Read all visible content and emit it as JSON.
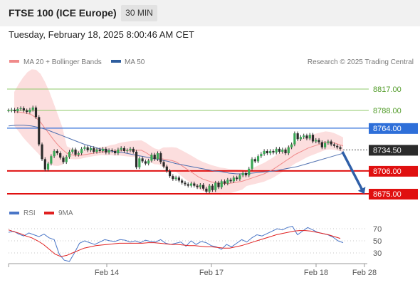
{
  "header": {
    "title": "FTSE 100 (ICE Europe)",
    "timeframe": "30 MIN"
  },
  "timestamp": "Tuesday, February 18, 2025 8:00:46 AM CET",
  "legend": [
    {
      "label": "MA 20 + Bollinger Bands",
      "color": "#f08a8a"
    },
    {
      "label": "MA 50",
      "color": "#2e5d9e"
    }
  ],
  "credit": "Research © 2025 Trading Central",
  "rsi_legend": [
    {
      "label": "RSI",
      "color": "#4a76c7"
    },
    {
      "label": "9MA",
      "color": "#e02020"
    }
  ],
  "chart_data": {
    "type": "line",
    "title": "FTSE 100 (ICE Europe)",
    "interval": "30 MIN",
    "x_ticks": [
      "Feb 14",
      "Feb 17",
      "Feb 18",
      "Feb 28"
    ],
    "last_price": 8734.5,
    "last_price_label": "8734.50",
    "levels": [
      {
        "value": 8817.0,
        "label": "8817.00",
        "color": "#8fc96a",
        "kind": "target"
      },
      {
        "value": 8788.0,
        "label": "8788.00",
        "color": "#8fc96a",
        "kind": "target"
      },
      {
        "value": 8764.0,
        "label": "8764.00",
        "color": "#2e6fd9",
        "kind": "pivot"
      },
      {
        "value": 8706.0,
        "label": "8706.00",
        "color": "#e01010",
        "kind": "support"
      },
      {
        "value": 8675.0,
        "label": "8675.00",
        "color": "#e01010",
        "kind": "support"
      }
    ],
    "price_series": [
      8788,
      8789,
      8787,
      8790,
      8791,
      8788,
      8786,
      8789,
      8792,
      8779,
      8742,
      8722,
      8708,
      8716,
      8726,
      8733,
      8730,
      8724,
      8718,
      8725,
      8732,
      8735,
      8728,
      8730,
      8736,
      8738,
      8734,
      8737,
      8732,
      8735,
      8733,
      8736,
      8731,
      8734,
      8733,
      8730,
      8735,
      8737,
      8733,
      8734,
      8736,
      8732,
      8711,
      8723,
      8719,
      8716,
      8720,
      8728,
      8722,
      8730,
      8718,
      8712,
      8706,
      8699,
      8695,
      8697,
      8693,
      8690,
      8688,
      8686,
      8689,
      8686,
      8684,
      8687,
      8682,
      8678,
      8686,
      8680,
      8690,
      8684,
      8692,
      8689,
      8694,
      8692,
      8697,
      8695,
      8700,
      8703,
      8700,
      8709,
      8722,
      8719,
      8726,
      8729,
      8733,
      8730,
      8733,
      8731,
      8736,
      8732,
      8735,
      8730,
      8738,
      8742,
      8757,
      8749,
      8752,
      8754,
      8750,
      8755,
      8746,
      8748,
      8745,
      8738,
      8744,
      8746,
      8742,
      8740,
      8738,
      8736
    ],
    "ma20_series": [
      8786,
      8786,
      8785,
      8784,
      8782,
      8778,
      8772,
      8764,
      8756,
      8748,
      8741,
      8735,
      8730,
      8728,
      8727,
      8727,
      8728,
      8729,
      8730,
      8731,
      8732,
      8732,
      8733,
      8733,
      8734,
      8734,
      8734,
      8734,
      8734,
      8734,
      8731,
      8727,
      8724,
      8723,
      8722,
      8721,
      8720,
      8718,
      8714,
      8710,
      8706,
      8702,
      8698,
      8695,
      8693,
      8691,
      8690,
      8689,
      8689,
      8689,
      8690,
      8691,
      8692,
      8694,
      8696,
      8698,
      8700,
      8702,
      8705,
      8708,
      8712,
      8716,
      8720,
      8724,
      8728,
      8731,
      8734,
      8737,
      8739,
      8741,
      8743,
      8745,
      8745,
      8744,
      8742,
      8740
    ],
    "ma50_series": [
      8767,
      8768,
      8768,
      8767,
      8765,
      8762,
      8758,
      8754,
      8750,
      8746,
      8742,
      8739,
      8736,
      8734,
      8732,
      8731,
      8729,
      8727,
      8725,
      8723,
      8721,
      8719,
      8716,
      8714,
      8712,
      8710,
      8708,
      8706,
      8705,
      8703,
      8702,
      8702,
      8703,
      8704,
      8705,
      8706,
      8708,
      8710,
      8712,
      8715,
      8718,
      8721,
      8724,
      8727,
      8730
    ],
    "rsi": {
      "ticks": [
        30,
        50,
        70
      ],
      "ylim": [
        10,
        80
      ],
      "rsi_series": [
        64,
        66,
        61,
        58,
        63,
        60,
        57,
        61,
        55,
        52,
        28,
        18,
        16,
        30,
        46,
        50,
        47,
        44,
        48,
        52,
        50,
        49,
        52,
        51,
        48,
        50,
        47,
        51,
        49,
        48,
        52,
        46,
        44,
        46,
        48,
        41,
        50,
        44,
        49,
        47,
        42,
        40,
        36,
        44,
        40,
        46,
        52,
        48,
        55,
        60,
        58,
        62,
        66,
        70,
        68,
        72,
        74,
        60,
        66,
        72,
        68,
        64,
        62,
        60,
        56,
        50,
        47
      ],
      "ma_series": [
        68,
        65,
        62,
        58,
        55,
        50,
        44,
        36,
        28,
        24,
        26,
        30,
        34,
        38,
        40,
        42,
        43,
        44,
        45,
        46,
        46,
        46,
        46,
        46,
        47,
        47,
        46,
        45,
        44,
        44,
        43,
        42,
        42,
        41,
        40,
        40,
        39,
        38,
        38,
        40,
        42,
        45,
        48,
        51,
        54,
        57,
        60,
        62,
        64,
        66,
        67,
        67,
        66,
        64,
        62,
        60,
        57,
        54
      ]
    }
  }
}
